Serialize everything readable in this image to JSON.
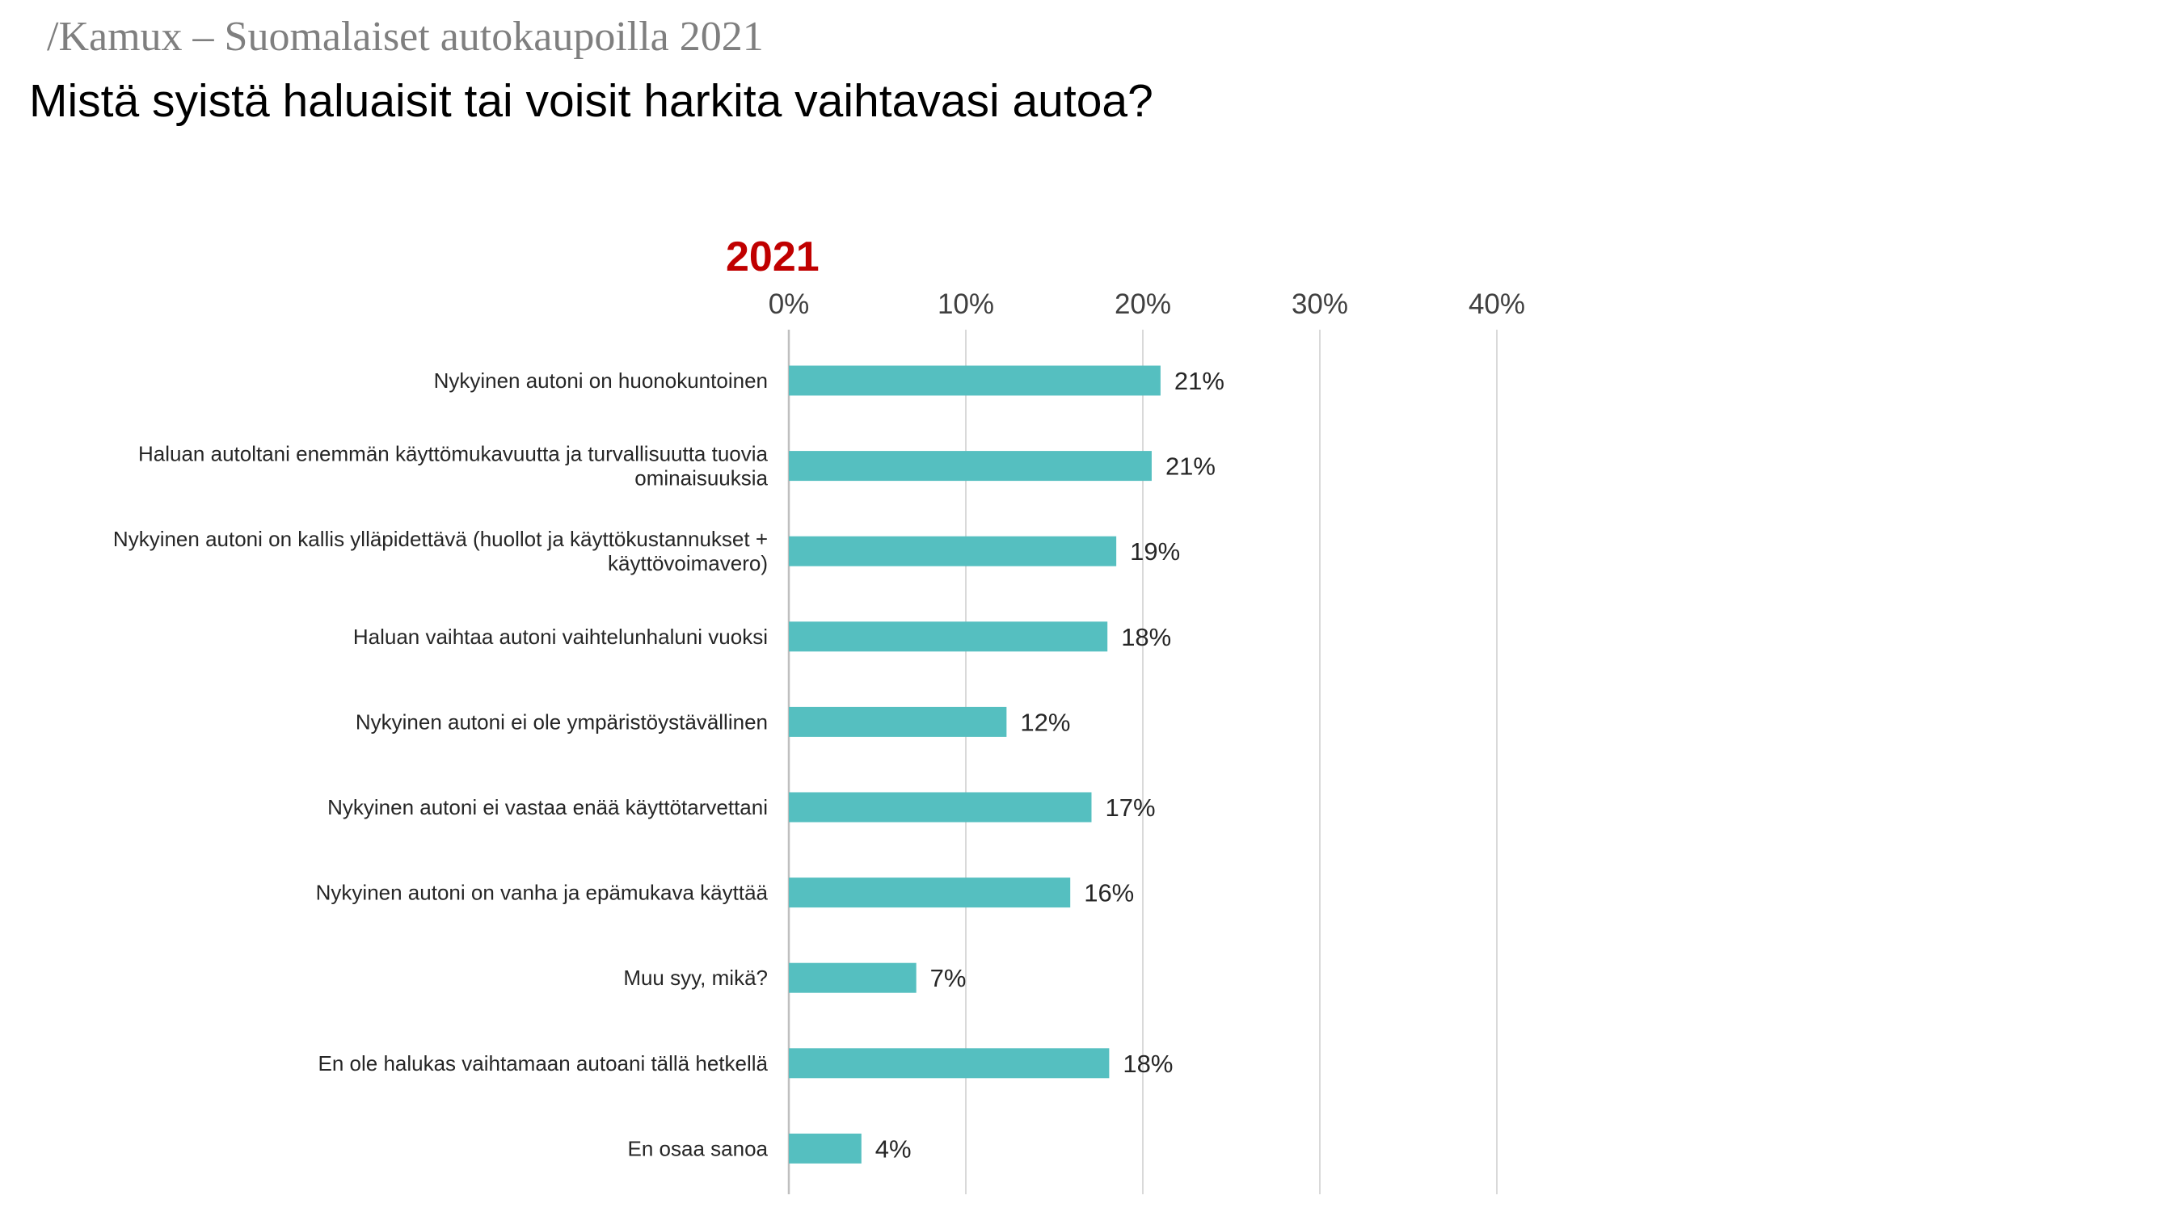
{
  "header": {
    "brand": "/Kamux – Suomalaiset autokaupoilla 2021",
    "question": "Mistä syistä haluaisit tai voisit harkita vaihtavasi autoa?"
  },
  "colors": {
    "bar": "#55bfc0",
    "year_label": "#c00000",
    "gridline": "#d9d9d9",
    "axis": "#bfbfbf"
  },
  "chart_data": {
    "type": "bar",
    "orientation": "horizontal",
    "year_label": "2021",
    "x_axis_position": "top",
    "xlim": [
      0,
      40
    ],
    "x_ticks": [
      0,
      10,
      20,
      30,
      40
    ],
    "x_tick_labels": [
      "0%",
      "10%",
      "20%",
      "30%",
      "40%"
    ],
    "grid": true,
    "categories": [
      [
        "Nykyinen autoni on huonokuntoinen"
      ],
      [
        "Haluan autoltani enemmän käyttömukavuutta ja turvallisuutta tuovia",
        "ominaisuuksia"
      ],
      [
        "Nykyinen autoni on kallis ylläpidettävä (huollot ja käyttökustannukset +",
        "käyttövoimavero)"
      ],
      [
        "Haluan vaihtaa autoni vaihtelunhaluni vuoksi"
      ],
      [
        "Nykyinen autoni ei ole ympäristöystävällinen"
      ],
      [
        "Nykyinen autoni ei vastaa enää käyttötarvettani"
      ],
      [
        "Nykyinen autoni on vanha ja epämukava käyttää"
      ],
      [
        "Muu syy, mikä?"
      ],
      [
        "En ole halukas vaihtamaan autoani tällä hetkellä"
      ],
      [
        "En osaa sanoa"
      ]
    ],
    "values": [
      21,
      20.5,
      18.5,
      18,
      12.3,
      17.1,
      15.9,
      7.2,
      18.1,
      4.1
    ],
    "value_labels": [
      "21%",
      "21%",
      "19%",
      "18%",
      "12%",
      "17%",
      "16%",
      "7%",
      "18%",
      "4%"
    ]
  }
}
